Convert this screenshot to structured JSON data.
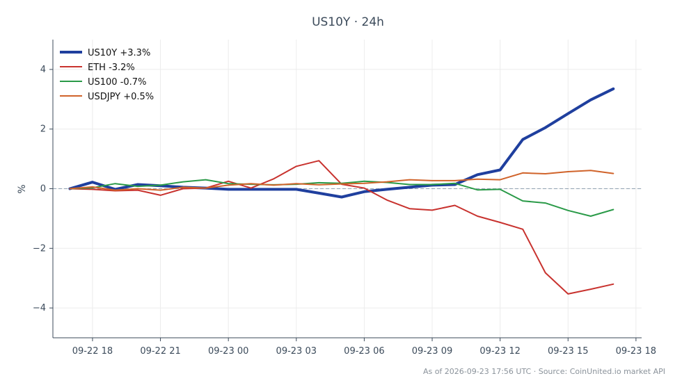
{
  "chart_data": {
    "type": "line",
    "title": "US10Y · 24h",
    "xlabel": "",
    "ylabel": "%",
    "ylim": [
      -5,
      5
    ],
    "yticks": [
      -4,
      -2,
      0,
      2,
      4
    ],
    "ytick_labels": [
      "−4",
      "−2",
      "0",
      "2",
      "4"
    ],
    "xticks": [
      "2026-09-22 18:00",
      "2026-09-22 21:00",
      "2026-09-23 00:00",
      "2026-09-23 03:00",
      "2026-09-23 06:00",
      "2026-09-23 09:00",
      "2026-09-23 12:00",
      "2026-09-23 15:00",
      "2026-09-23 18:00"
    ],
    "xtick_labels": [
      "09-22 18",
      "09-22 21",
      "09-23 00",
      "09-23 03",
      "09-23 06",
      "09-23 09",
      "09-23 12",
      "09-23 15",
      "09-23 18"
    ],
    "xlim": [
      "2026-09-22 16:15",
      "2026-09-23 18:15"
    ],
    "x": [
      "2026-09-22 17:00",
      "2026-09-22 18:00",
      "2026-09-22 19:00",
      "2026-09-22 20:00",
      "2026-09-22 21:00",
      "2026-09-22 22:00",
      "2026-09-22 23:00",
      "2026-09-23 00:00",
      "2026-09-23 01:00",
      "2026-09-23 02:00",
      "2026-09-23 03:00",
      "2026-09-23 04:00",
      "2026-09-23 05:00",
      "2026-09-23 06:00",
      "2026-09-23 07:00",
      "2026-09-23 08:00",
      "2026-09-23 09:00",
      "2026-09-23 10:00",
      "2026-09-23 11:00",
      "2026-09-23 12:00",
      "2026-09-23 13:00",
      "2026-09-23 14:00",
      "2026-09-23 15:00",
      "2026-09-23 16:00",
      "2026-09-23 17:00"
    ],
    "series": [
      {
        "name": "US10Y +3.3%",
        "color": "#1f3f9e",
        "values": [
          0.0,
          0.22,
          -0.02,
          0.14,
          0.1,
          0.05,
          0.02,
          -0.02,
          -0.02,
          -0.02,
          -0.02,
          -0.15,
          -0.28,
          -0.1,
          -0.02,
          0.05,
          0.12,
          0.14,
          0.47,
          0.63,
          1.65,
          2.05,
          2.52,
          2.98,
          3.35
        ]
      },
      {
        "name": "ETH -3.2%",
        "color": "#c8322e",
        "values": [
          0.0,
          -0.02,
          -0.07,
          -0.05,
          -0.22,
          0.0,
          0.02,
          0.25,
          0.02,
          0.33,
          0.75,
          0.94,
          0.15,
          0.02,
          -0.38,
          -0.67,
          -0.72,
          -0.56,
          -0.92,
          -1.13,
          -1.36,
          -2.82,
          -3.53,
          -3.37,
          -3.2
        ]
      },
      {
        "name": "US100 -0.7%",
        "color": "#2a9a48",
        "values": [
          0.0,
          0.03,
          0.17,
          0.08,
          0.12,
          0.23,
          0.3,
          0.17,
          0.15,
          0.13,
          0.15,
          0.2,
          0.18,
          0.25,
          0.21,
          0.14,
          0.14,
          0.18,
          -0.04,
          -0.02,
          -0.41,
          -0.48,
          -0.73,
          -0.92,
          -0.7
        ]
      },
      {
        "name": "USDJPY +0.5%",
        "color": "#d0632a",
        "values": [
          0.0,
          0.06,
          -0.05,
          0.0,
          -0.05,
          0.05,
          0.02,
          0.12,
          0.17,
          0.12,
          0.17,
          0.13,
          0.16,
          0.18,
          0.23,
          0.3,
          0.27,
          0.27,
          0.32,
          0.3,
          0.53,
          0.5,
          0.57,
          0.61,
          0.51
        ]
      }
    ],
    "zero_line": true,
    "grid": true,
    "legend_position": "top-left"
  },
  "footnote": "As of 2026-09-23 17:56 UTC · Source: CoinUnited.io market API"
}
